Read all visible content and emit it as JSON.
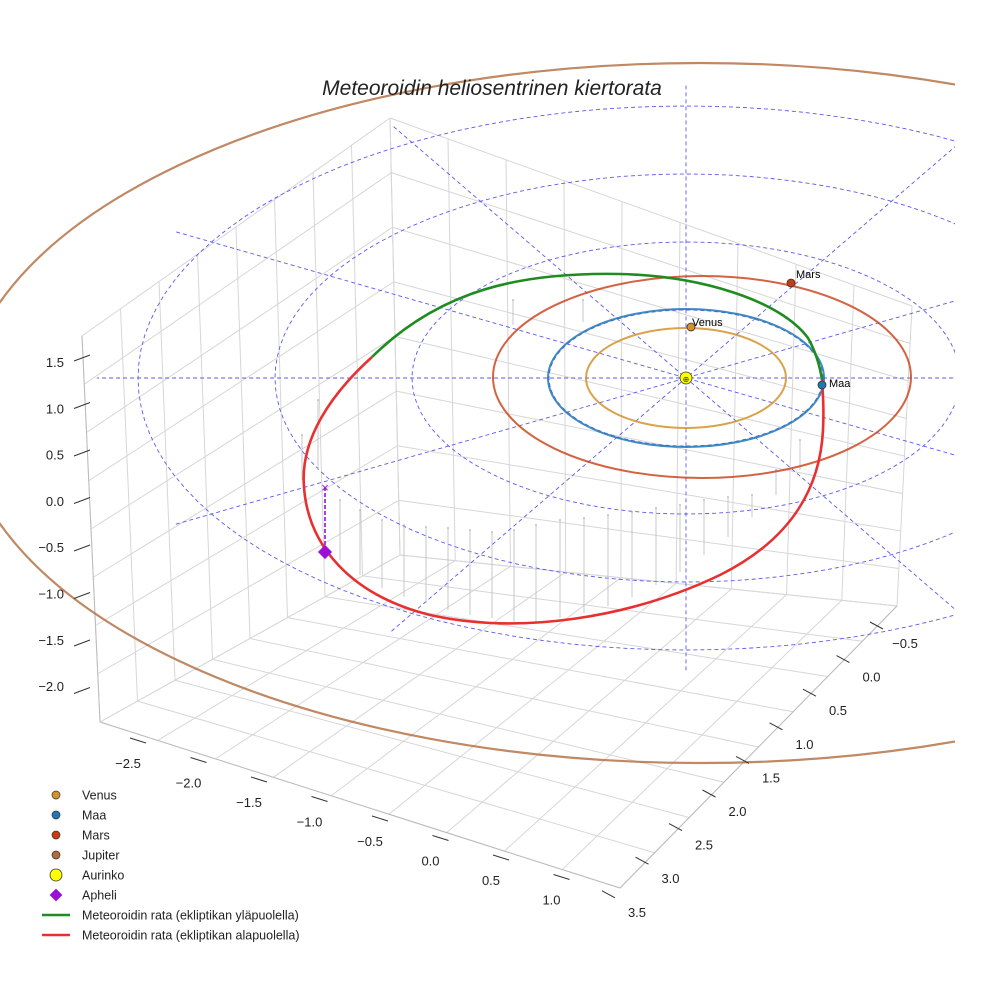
{
  "chart_data": {
    "type": "line3d",
    "title": "Meteoroidin heliosentrinen kiertorata",
    "x_ticks": [
      "−2.5",
      "−2.0",
      "−1.5",
      "−1.0",
      "−0.5",
      "0.0",
      "0.5",
      "1.0"
    ],
    "y_ticks": [
      "−0.5",
      "0.0",
      "0.5",
      "1.0",
      "1.5",
      "2.0",
      "2.5",
      "3.0",
      "3.5"
    ],
    "z_ticks": [
      "1.5",
      "1.0",
      "0.5",
      "0.0",
      "−0.5",
      "−1.0",
      "−1.5",
      "−2.0"
    ],
    "xlim": [
      -2.75,
      1.25
    ],
    "ylim": [
      -0.75,
      3.6
    ],
    "zlim": [
      -2.2,
      1.75
    ],
    "planets": [
      {
        "name": "Venus",
        "label": "Venus",
        "orbit_radius_au": 0.72,
        "color": "#d4922a"
      },
      {
        "name": "Maa",
        "label": "Maa",
        "orbit_radius_au": 1.0,
        "color": "#1f77b4"
      },
      {
        "name": "Mars",
        "label": "Mars",
        "orbit_radius_au": 1.52,
        "color": "#c83c14"
      },
      {
        "name": "Jupiter",
        "label": "",
        "orbit_radius_au": 5.2,
        "color": "#b06a3c"
      }
    ],
    "sun": {
      "name": "Aurinko",
      "color": "#ffff00"
    },
    "aphelion": {
      "name": "Apheli",
      "color": "#9b10d4"
    },
    "series": [
      {
        "name": "Meteoroidin rata (ekliptikan yläpuolella)",
        "color": "#1e8c1e"
      },
      {
        "name": "Meteoroidin rata (ekliptikan alapuolella)",
        "color": "#e83030"
      }
    ],
    "legend": [
      {
        "label": "Venus",
        "marker": "circle",
        "color": "#d4922a"
      },
      {
        "label": "Maa",
        "marker": "circle",
        "color": "#1f77b4"
      },
      {
        "label": "Mars",
        "marker": "circle",
        "color": "#c83c14"
      },
      {
        "label": "Jupiter",
        "marker": "circle",
        "color": "#b06a3c"
      },
      {
        "label": "Aurinko",
        "marker": "big-circle",
        "color": "#ffff00"
      },
      {
        "label": "Apheli",
        "marker": "diamond",
        "color": "#9b10d4"
      },
      {
        "label": "Meteoroidin rata (ekliptikan yläpuolella)",
        "marker": "line",
        "color": "#1e8c1e"
      },
      {
        "label": "Meteoroidin rata (ekliptikan alapuolella)",
        "marker": "line",
        "color": "#e83030"
      }
    ],
    "legend_position": "bottom-left"
  }
}
